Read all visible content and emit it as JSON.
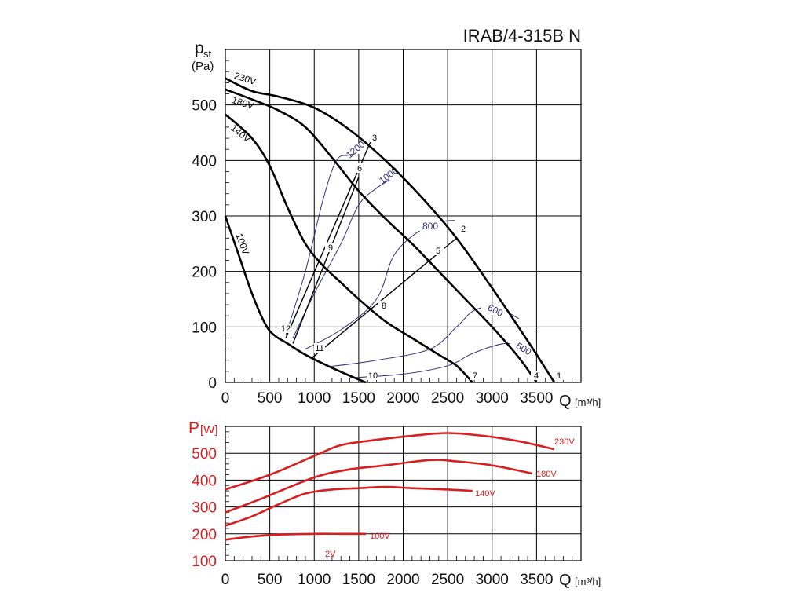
{
  "title": "IRAB/4-315B N",
  "colors": {
    "axis": "#000000",
    "grid": "#000000",
    "iso": "#2e2e7a",
    "power": "#d81e1e",
    "text": "#111111"
  },
  "chart_data": [
    {
      "type": "line",
      "name": "pressure-chart",
      "ylabel_main": "p",
      "ylabel_sub": "st",
      "yunit": "(Pa)",
      "xlabel": "Q",
      "xunit": "[m³/h]",
      "xlim": [
        0,
        4000
      ],
      "ylim": [
        0,
        600
      ],
      "xticks": [
        "0",
        "500",
        "1000",
        "1500",
        "2000",
        "2500",
        "3000",
        "3500"
      ],
      "yticks": [
        "0",
        "100",
        "200",
        "300",
        "400",
        "500"
      ],
      "series": [
        {
          "name": "230V",
          "x": [
            0,
            300,
            600,
            1000,
            1400,
            1800,
            2200,
            2600,
            3000,
            3400,
            3700
          ],
          "y": [
            548,
            525,
            515,
            495,
            455,
            400,
            335,
            260,
            170,
            75,
            0
          ]
        },
        {
          "name": "180V",
          "x": [
            0,
            300,
            600,
            900,
            1200,
            1500,
            1800,
            2100,
            2400,
            2700,
            3000,
            3300,
            3500
          ],
          "y": [
            528,
            510,
            490,
            460,
            405,
            345,
            295,
            250,
            200,
            150,
            100,
            45,
            0
          ]
        },
        {
          "name": "140V",
          "x": [
            0,
            300,
            500,
            700,
            900,
            1100,
            1300,
            1500,
            1800,
            2100,
            2400,
            2600,
            2780
          ],
          "y": [
            483,
            440,
            390,
            315,
            250,
            210,
            180,
            150,
            110,
            80,
            50,
            30,
            0
          ]
        },
        {
          "name": "100V",
          "x": [
            0,
            150,
            300,
            450,
            550,
            700,
            900,
            1150,
            1400,
            1580
          ],
          "y": [
            300,
            230,
            160,
            105,
            85,
            70,
            50,
            30,
            12,
            0
          ]
        }
      ],
      "iso_lines": [
        {
          "label": "1200",
          "x": [
            680,
            900,
            1100,
            1250,
            1400,
            1600
          ],
          "y": [
            85,
            200,
            330,
            400,
            410,
            420
          ]
        },
        {
          "label": "1000",
          "x": [
            760,
            1000,
            1300,
            1500,
            1700,
            1900
          ],
          "y": [
            80,
            160,
            250,
            320,
            350,
            370
          ]
        },
        {
          "label": "800",
          "x": [
            900,
            1300,
            1700,
            1900,
            2200,
            2450,
            2580
          ],
          "y": [
            60,
            95,
            150,
            230,
            275,
            290,
            292
          ]
        },
        {
          "label": "600",
          "x": [
            1150,
            1700,
            2300,
            2600,
            2800,
            3050,
            3300
          ],
          "y": [
            28,
            40,
            60,
            100,
            130,
            135,
            115
          ]
        },
        {
          "label": "500",
          "x": [
            1400,
            2000,
            2500,
            2750,
            3000,
            3200,
            3500
          ],
          "y": [
            8,
            15,
            30,
            50,
            65,
            70,
            60
          ]
        }
      ],
      "operating_lines": [
        {
          "x": [
            680,
            1650
          ],
          "y": [
            80,
            440
          ]
        },
        {
          "x": [
            760,
            1500
          ],
          "y": [
            70,
            370
          ]
        },
        {
          "x": [
            980,
            2600
          ],
          "y": [
            45,
            260
          ]
        }
      ],
      "point_labels": [
        "1",
        "2",
        "3",
        "4",
        "5",
        "6",
        "7",
        "8",
        "9",
        "10",
        "11",
        "12"
      ],
      "curve_labels": [
        "230V",
        "180V",
        "140V",
        "100V"
      ]
    },
    {
      "type": "line",
      "name": "power-chart",
      "ylabel_main": "P",
      "yunit": "[W]",
      "xlabel": "Q",
      "xunit": "[m³/h]",
      "xlim": [
        0,
        4000
      ],
      "ylim": [
        100,
        600
      ],
      "xticks": [
        "0",
        "500",
        "1000",
        "1500",
        "2000",
        "2500",
        "3000",
        "3500"
      ],
      "yticks": [
        "100",
        "200",
        "300",
        "400",
        "500"
      ],
      "series": [
        {
          "name": "230V",
          "x": [
            0,
            500,
            1000,
            1300,
            1700,
            2100,
            2500,
            2900,
            3300,
            3700
          ],
          "y": [
            365,
            420,
            490,
            530,
            550,
            565,
            575,
            565,
            545,
            515
          ]
        },
        {
          "name": "180V",
          "x": [
            0,
            400,
            1000,
            1400,
            1800,
            2300,
            2600,
            3000,
            3450
          ],
          "y": [
            280,
            330,
            410,
            440,
            455,
            475,
            470,
            455,
            425
          ]
        },
        {
          "name": "140V",
          "x": [
            0,
            300,
            600,
            900,
            1200,
            1500,
            1800,
            2100,
            2500,
            2780
          ],
          "y": [
            230,
            265,
            310,
            350,
            365,
            370,
            375,
            370,
            365,
            360
          ]
        },
        {
          "name": "100V",
          "x": [
            0,
            300,
            600,
            1000,
            1300,
            1580
          ],
          "y": [
            178,
            190,
            197,
            200,
            200,
            200
          ]
        }
      ],
      "curve_labels": [
        "230V",
        "180V",
        "140V",
        "100V"
      ],
      "note": "2V"
    }
  ]
}
